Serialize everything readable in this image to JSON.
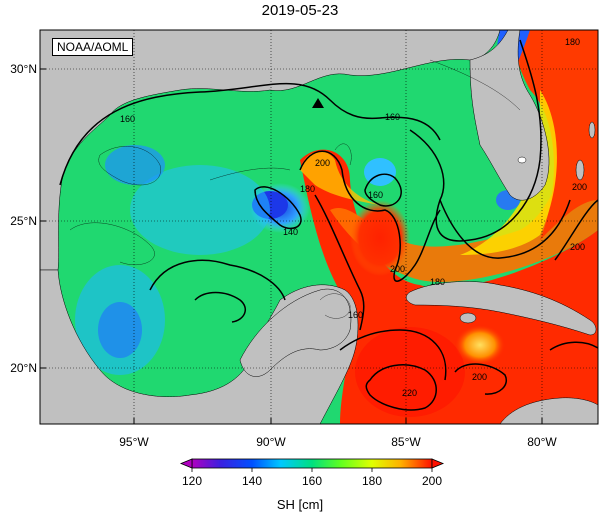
{
  "map": {
    "title": "2019-05-23",
    "attribution": "NOAA/AOML",
    "lat_ticks": [
      "30°N",
      "25°N",
      "20°N"
    ],
    "lon_ticks": [
      "95°W",
      "90°W",
      "85°W",
      "80°W"
    ],
    "contour_labels": [
      "160",
      "160",
      "160",
      "160",
      "180",
      "180",
      "180",
      "140",
      "200",
      "200",
      "200",
      "200",
      "200",
      "220",
      "180"
    ],
    "marker": "triangle-marker",
    "colors": {
      "land": "#c0c0c0",
      "low": "#2030d0",
      "mid": "#18d060",
      "high": "#ff2200"
    }
  },
  "colorbar": {
    "label": "SH [cm]",
    "ticks": [
      "120",
      "140",
      "160",
      "180",
      "200"
    ],
    "range": [
      120,
      200
    ],
    "colors": [
      "#b000c0",
      "#3a20e0",
      "#0080ff",
      "#00d0ff",
      "#00e080",
      "#60ff20",
      "#e0ff00",
      "#ffc000",
      "#ff6000",
      "#ff1000"
    ]
  }
}
